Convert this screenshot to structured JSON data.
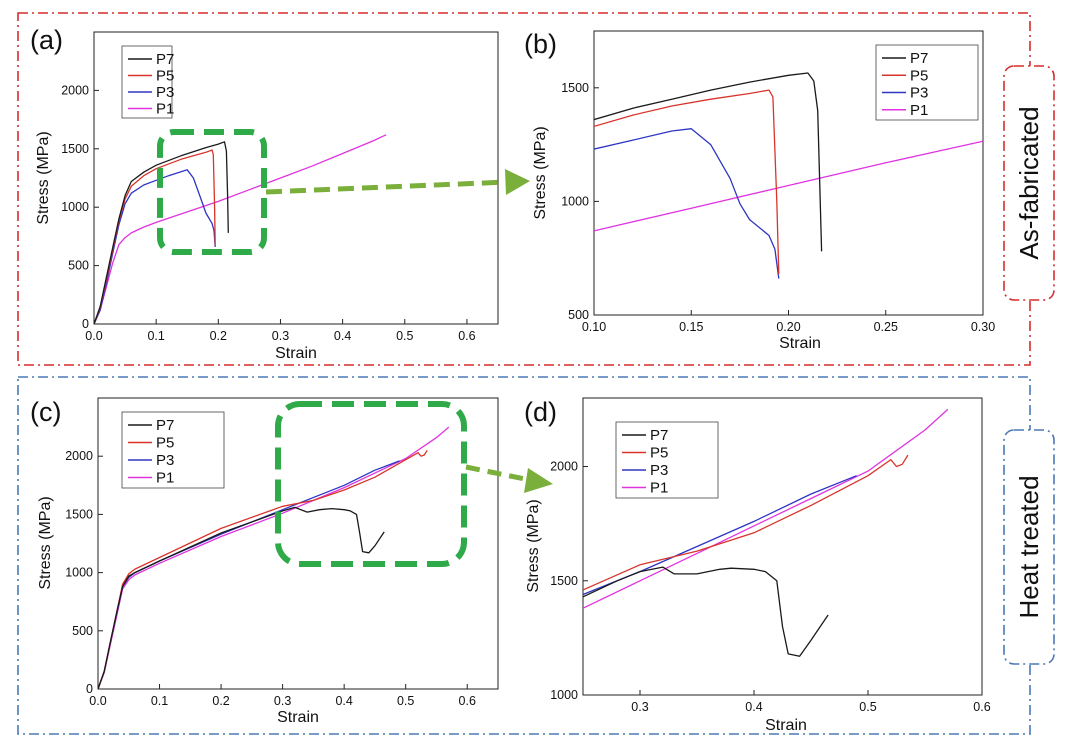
{
  "colors": {
    "P7": "#1a1a1a",
    "P5": "#d9342b",
    "P3": "#2e35c4",
    "P1": "#e033e0",
    "as_fabricated_frame": "#d62c2c",
    "heat_treated_frame": "#4a78b5",
    "zoom_box": "#2faa48",
    "zoom_arrow": "#7aaf3c"
  },
  "groups": {
    "as_fabricated": "As-fabricated",
    "heat_treated": "Heat treated"
  },
  "legend": [
    "P7",
    "P5",
    "P3",
    "P1"
  ],
  "chart_data": [
    {
      "id": "a",
      "panel_label": "(a)",
      "type": "line",
      "xlabel": "Strain",
      "ylabel": "Stress (MPa)",
      "xlim": [
        0,
        0.65
      ],
      "ylim": [
        0,
        2500
      ],
      "xticks": [
        "0.0",
        "0.1",
        "0.2",
        "0.3",
        "0.4",
        "0.5",
        "0.6"
      ],
      "yticks": [
        "0",
        "500",
        "1000",
        "1500",
        "2000"
      ],
      "legend_position": "top-left",
      "series": [
        {
          "name": "P7",
          "x": [
            0,
            0.01,
            0.02,
            0.03,
            0.04,
            0.05,
            0.06,
            0.08,
            0.1,
            0.14,
            0.18,
            0.2,
            0.21,
            0.213,
            0.215,
            0.216
          ],
          "y": [
            0,
            150,
            400,
            650,
            900,
            1100,
            1220,
            1300,
            1360,
            1440,
            1510,
            1540,
            1560,
            1480,
            1100,
            780
          ]
        },
        {
          "name": "P5",
          "x": [
            0,
            0.01,
            0.02,
            0.03,
            0.04,
            0.05,
            0.06,
            0.08,
            0.1,
            0.14,
            0.18,
            0.19,
            0.192,
            0.194,
            0.195
          ],
          "y": [
            0,
            140,
            380,
            630,
            880,
            1070,
            1180,
            1270,
            1330,
            1410,
            1470,
            1490,
            1450,
            1000,
            680
          ]
        },
        {
          "name": "P3",
          "x": [
            0,
            0.01,
            0.02,
            0.03,
            0.04,
            0.05,
            0.06,
            0.08,
            0.1,
            0.12,
            0.15,
            0.16,
            0.17,
            0.18,
            0.19,
            0.193,
            0.195
          ],
          "y": [
            0,
            120,
            350,
            600,
            850,
            1030,
            1120,
            1190,
            1230,
            1270,
            1320,
            1250,
            1100,
            950,
            860,
            800,
            660
          ]
        },
        {
          "name": "P1",
          "x": [
            0,
            0.01,
            0.02,
            0.03,
            0.04,
            0.05,
            0.06,
            0.08,
            0.1,
            0.15,
            0.2,
            0.25,
            0.3,
            0.35,
            0.4,
            0.45,
            0.47
          ],
          "y": [
            0,
            120,
            320,
            520,
            680,
            740,
            780,
            830,
            870,
            960,
            1050,
            1150,
            1250,
            1350,
            1460,
            1570,
            1620
          ]
        }
      ]
    },
    {
      "id": "b",
      "panel_label": "(b)",
      "type": "line",
      "xlabel": "Strain",
      "ylabel": "Stress (MPa)",
      "xlim": [
        0.1,
        0.3
      ],
      "ylim": [
        500,
        1750
      ],
      "xticks": [
        "0.10",
        "0.15",
        "0.20",
        "0.25",
        "0.30"
      ],
      "yticks": [
        "500",
        "1000",
        "1500"
      ],
      "legend_position": "top-right",
      "series": [
        {
          "name": "P7",
          "x": [
            0.1,
            0.12,
            0.14,
            0.16,
            0.18,
            0.2,
            0.21,
            0.213,
            0.215,
            0.216,
            0.217
          ],
          "y": [
            1360,
            1410,
            1450,
            1490,
            1525,
            1555,
            1565,
            1530,
            1400,
            1100,
            780
          ]
        },
        {
          "name": "P5",
          "x": [
            0.1,
            0.12,
            0.14,
            0.16,
            0.18,
            0.19,
            0.192,
            0.194,
            0.195
          ],
          "y": [
            1330,
            1380,
            1420,
            1450,
            1475,
            1490,
            1460,
            1000,
            680
          ]
        },
        {
          "name": "P3",
          "x": [
            0.1,
            0.12,
            0.14,
            0.15,
            0.16,
            0.17,
            0.175,
            0.18,
            0.19,
            0.193,
            0.195
          ],
          "y": [
            1230,
            1270,
            1310,
            1320,
            1250,
            1100,
            990,
            920,
            850,
            790,
            660
          ]
        },
        {
          "name": "P1",
          "x": [
            0.1,
            0.15,
            0.2,
            0.25,
            0.3
          ],
          "y": [
            870,
            970,
            1070,
            1170,
            1265
          ]
        }
      ]
    },
    {
      "id": "c",
      "panel_label": "(c)",
      "type": "line",
      "xlabel": "Strain",
      "ylabel": "Stress (MPa)",
      "xlim": [
        0,
        0.65
      ],
      "ylim": [
        0,
        2500
      ],
      "xticks": [
        "0.0",
        "0.1",
        "0.2",
        "0.3",
        "0.4",
        "0.5",
        "0.6"
      ],
      "yticks": [
        "0",
        "500",
        "1000",
        "1500",
        "2000"
      ],
      "legend_position": "top-left",
      "series": [
        {
          "name": "P7",
          "x": [
            0,
            0.01,
            0.02,
            0.03,
            0.04,
            0.05,
            0.06,
            0.1,
            0.2,
            0.3,
            0.32,
            0.34,
            0.36,
            0.38,
            0.4,
            0.41,
            0.42,
            0.425,
            0.43,
            0.44,
            0.45,
            0.465
          ],
          "y": [
            0,
            150,
            400,
            650,
            880,
            970,
            1000,
            1100,
            1340,
            1530,
            1560,
            1520,
            1540,
            1550,
            1540,
            1530,
            1500,
            1350,
            1180,
            1170,
            1230,
            1350
          ]
        },
        {
          "name": "P5",
          "x": [
            0,
            0.01,
            0.02,
            0.03,
            0.04,
            0.05,
            0.06,
            0.1,
            0.2,
            0.3,
            0.35,
            0.4,
            0.45,
            0.5,
            0.52,
            0.525,
            0.53,
            0.535
          ],
          "y": [
            0,
            150,
            400,
            650,
            900,
            990,
            1030,
            1130,
            1380,
            1570,
            1620,
            1710,
            1820,
            1970,
            2030,
            2000,
            2010,
            2050
          ]
        },
        {
          "name": "P3",
          "x": [
            0,
            0.01,
            0.02,
            0.03,
            0.04,
            0.05,
            0.06,
            0.1,
            0.2,
            0.3,
            0.4,
            0.45,
            0.49
          ],
          "y": [
            0,
            150,
            400,
            640,
            880,
            960,
            1000,
            1100,
            1330,
            1540,
            1750,
            1880,
            1960
          ]
        },
        {
          "name": "P1",
          "x": [
            0,
            0.01,
            0.02,
            0.03,
            0.04,
            0.05,
            0.06,
            0.1,
            0.2,
            0.3,
            0.4,
            0.5,
            0.55,
            0.57
          ],
          "y": [
            0,
            140,
            380,
            620,
            860,
            940,
            980,
            1080,
            1310,
            1510,
            1730,
            1980,
            2160,
            2250
          ]
        }
      ]
    },
    {
      "id": "d",
      "panel_label": "(d)",
      "type": "line",
      "xlabel": "Strain",
      "ylabel": "Stress (MPa)",
      "xlim": [
        0.25,
        0.6
      ],
      "ylim": [
        1000,
        2300
      ],
      "xticks": [
        "0.3",
        "0.4",
        "0.5",
        "0.6"
      ],
      "yticks": [
        "1000",
        "1500",
        "2000"
      ],
      "legend_position": "top-left",
      "series": [
        {
          "name": "P7",
          "x": [
            0.25,
            0.28,
            0.3,
            0.32,
            0.33,
            0.35,
            0.37,
            0.38,
            0.4,
            0.41,
            0.42,
            0.425,
            0.43,
            0.44,
            0.45,
            0.465
          ],
          "y": [
            1430,
            1500,
            1540,
            1560,
            1530,
            1530,
            1550,
            1555,
            1550,
            1540,
            1500,
            1300,
            1180,
            1170,
            1240,
            1350
          ]
        },
        {
          "name": "P5",
          "x": [
            0.25,
            0.3,
            0.35,
            0.4,
            0.45,
            0.5,
            0.52,
            0.525,
            0.53,
            0.535
          ],
          "y": [
            1460,
            1570,
            1630,
            1710,
            1830,
            1960,
            2030,
            2000,
            2010,
            2050
          ]
        },
        {
          "name": "P3",
          "x": [
            0.25,
            0.3,
            0.35,
            0.4,
            0.45,
            0.49
          ],
          "y": [
            1440,
            1540,
            1650,
            1760,
            1880,
            1960
          ]
        },
        {
          "name": "P1",
          "x": [
            0.25,
            0.3,
            0.35,
            0.4,
            0.45,
            0.5,
            0.55,
            0.57
          ],
          "y": [
            1380,
            1500,
            1620,
            1740,
            1860,
            1980,
            2160,
            2250
          ]
        }
      ]
    }
  ]
}
